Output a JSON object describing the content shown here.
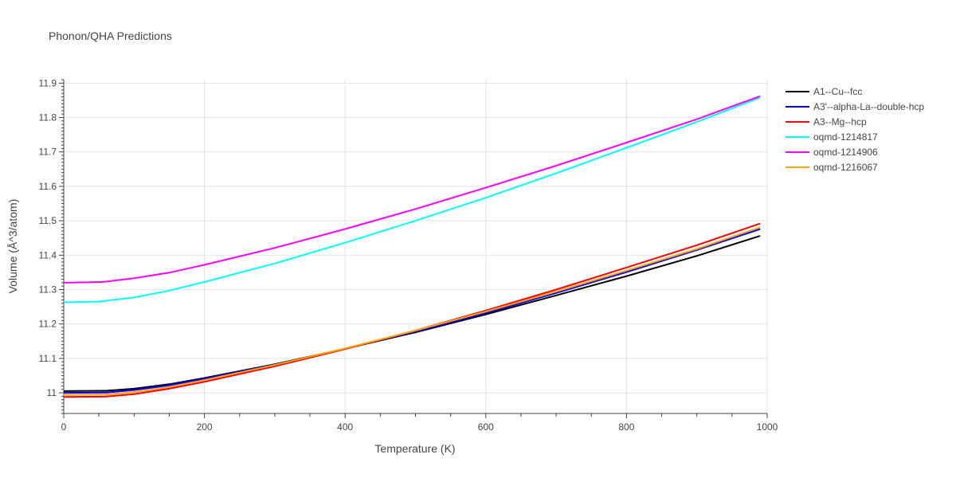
{
  "chart_data": {
    "type": "line",
    "title": "Phonon/QHA Predictions",
    "xlabel": "Temperature (K)",
    "ylabel": "Volume (Å^3/atom)",
    "xlim": [
      0,
      1000
    ],
    "ylim": [
      10.94,
      11.91
    ],
    "xticks": [
      0,
      200,
      400,
      600,
      800,
      1000
    ],
    "yticks": [
      11,
      11.1,
      11.2,
      11.3,
      11.4,
      11.5,
      11.6,
      11.7,
      11.8,
      11.9
    ],
    "grid": true,
    "legend_position": "right",
    "series": [
      {
        "name": "A1--Cu--fcc",
        "color": "#000000",
        "x": [
          0,
          60,
          100,
          150,
          200,
          300,
          400,
          500,
          600,
          700,
          800,
          900,
          990
        ],
        "y": [
          11.005,
          11.006,
          11.012,
          11.025,
          11.043,
          11.083,
          11.128,
          11.176,
          11.228,
          11.283,
          11.339,
          11.398,
          11.456
        ]
      },
      {
        "name": "A3'--alpha-La--double-hcp",
        "color": "#0000ff",
        "x": [
          0,
          60,
          100,
          150,
          200,
          300,
          400,
          500,
          600,
          700,
          800,
          900,
          990
        ],
        "y": [
          11.0,
          11.001,
          11.008,
          11.022,
          11.041,
          11.082,
          11.128,
          11.178,
          11.232,
          11.29,
          11.351,
          11.415,
          11.476
        ]
      },
      {
        "name": "A3--Mg--hcp",
        "color": "#ff0000",
        "x": [
          0,
          60,
          100,
          150,
          200,
          300,
          400,
          500,
          600,
          700,
          800,
          900,
          990
        ],
        "y": [
          10.988,
          10.989,
          10.996,
          11.012,
          11.032,
          11.077,
          11.127,
          11.181,
          11.239,
          11.3,
          11.364,
          11.429,
          11.492
        ]
      },
      {
        "name": "oqmd-1214817",
        "color": "#00ffff",
        "x": [
          0,
          50,
          100,
          150,
          200,
          300,
          400,
          500,
          600,
          700,
          800,
          900,
          990
        ],
        "y": [
          11.263,
          11.265,
          11.277,
          11.297,
          11.322,
          11.376,
          11.436,
          11.5,
          11.567,
          11.638,
          11.712,
          11.787,
          11.858
        ]
      },
      {
        "name": "oqmd-1214906",
        "color": "#ff00ff",
        "x": [
          0,
          55,
          100,
          150,
          200,
          300,
          400,
          500,
          600,
          700,
          800,
          900,
          990
        ],
        "y": [
          11.32,
          11.322,
          11.333,
          11.349,
          11.372,
          11.421,
          11.476,
          11.534,
          11.596,
          11.66,
          11.727,
          11.795,
          11.862
        ]
      },
      {
        "name": "oqmd-1216067",
        "color": "#ffa500",
        "x": [
          0,
          60,
          100,
          150,
          200,
          300,
          400,
          500,
          600,
          700,
          800,
          900,
          990
        ],
        "y": [
          10.994,
          10.995,
          11.002,
          11.017,
          11.037,
          11.081,
          11.129,
          11.181,
          11.236,
          11.294,
          11.355,
          11.418,
          11.481
        ]
      }
    ]
  }
}
